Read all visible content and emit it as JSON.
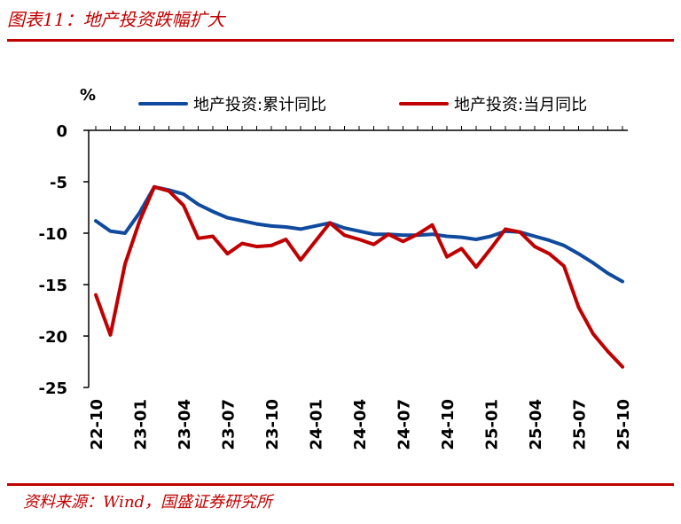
{
  "figure_title": "图表11：地产投资跌幅扩大",
  "source_text": "资料来源：Wind，国盛证券研究所",
  "chart_data": {
    "type": "line",
    "ylabel": "%",
    "ylim": [
      -25,
      0
    ],
    "yticks": [
      0,
      -5,
      -10,
      -15,
      -20,
      -25
    ],
    "x": [
      "22-10",
      "22-11",
      "22-12",
      "23-01",
      "23-02",
      "23-03",
      "23-04",
      "23-05",
      "23-06",
      "23-07",
      "23-08",
      "23-09",
      "23-10",
      "23-11",
      "23-12",
      "24-01",
      "24-02",
      "24-03",
      "24-04",
      "24-05",
      "24-06",
      "24-07",
      "24-08",
      "24-09",
      "24-10",
      "24-11",
      "24-12",
      "25-01",
      "25-02",
      "25-03",
      "25-04",
      "25-05",
      "25-06",
      "25-07",
      "25-08",
      "25-09",
      "25-10"
    ],
    "xtick_labels": [
      "22-10",
      "23-01",
      "23-04",
      "23-07",
      "23-10",
      "24-01",
      "24-04",
      "24-07",
      "24-10",
      "25-01",
      "25-04",
      "25-07",
      "25-10"
    ],
    "grid": false,
    "legend_position": "top",
    "series": [
      {
        "name": "地产投资:累计同比",
        "color": "#0f4a9e",
        "values": [
          -8.8,
          -9.8,
          -10.0,
          -8.0,
          -5.5,
          -5.8,
          -6.2,
          -7.2,
          -7.9,
          -8.5,
          -8.8,
          -9.1,
          -9.3,
          -9.4,
          -9.6,
          -9.3,
          -9.0,
          -9.5,
          -9.8,
          -10.1,
          -10.1,
          -10.2,
          -10.2,
          -10.1,
          -10.3,
          -10.4,
          -10.6,
          -10.3,
          -9.8,
          -9.9,
          -10.3,
          -10.7,
          -11.2,
          -12.0,
          -12.9,
          -13.9,
          -14.7
        ]
      },
      {
        "name": "地产投资:当月同比",
        "color": "#c00000",
        "values": [
          -16.0,
          -19.9,
          -13.0,
          -8.8,
          -5.5,
          -5.9,
          -7.3,
          -10.5,
          -10.3,
          -12.0,
          -11.0,
          -11.3,
          -11.2,
          -10.6,
          -12.6,
          -10.8,
          -9.0,
          -10.2,
          -10.6,
          -11.1,
          -10.1,
          -10.8,
          -10.1,
          -9.2,
          -12.3,
          -11.5,
          -13.3,
          -11.5,
          -9.6,
          -9.9,
          -11.3,
          -12.0,
          -13.2,
          -17.2,
          -19.8,
          -21.5,
          -23.0
        ]
      }
    ]
  }
}
